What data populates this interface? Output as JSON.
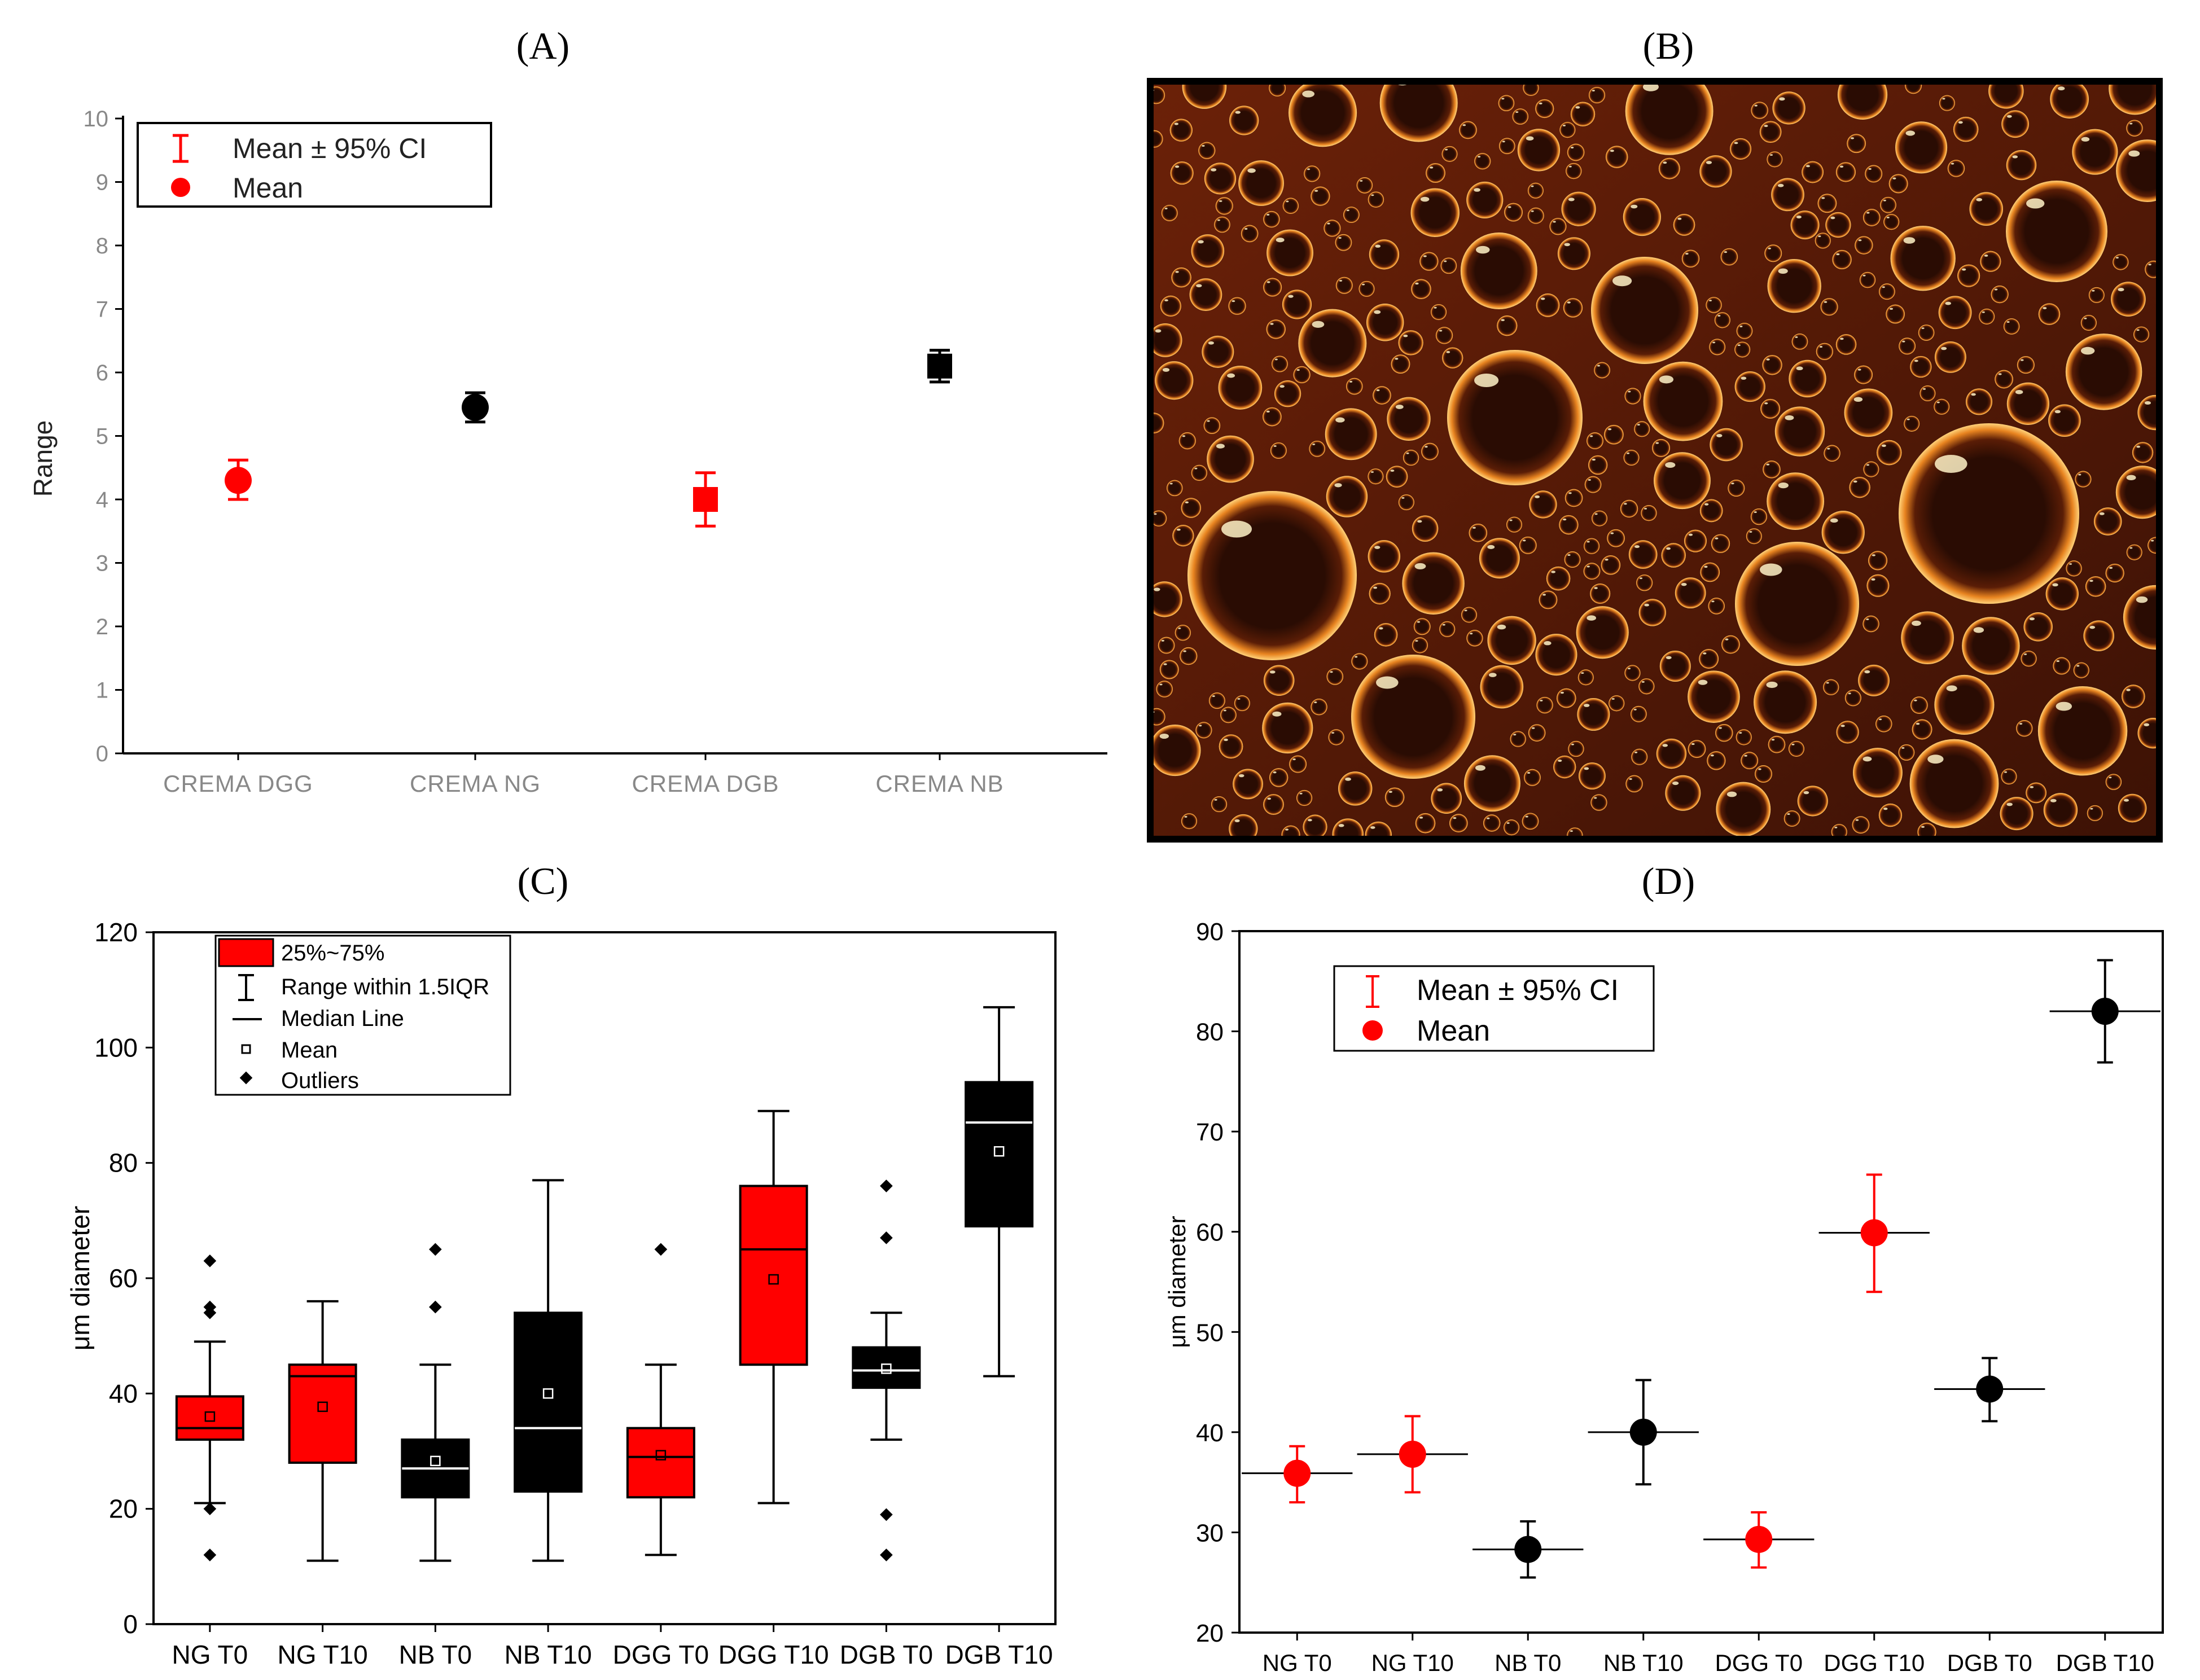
{
  "panels": {
    "A": "(A)",
    "B": "(B)",
    "C": "(C)",
    "D": "(D)"
  },
  "colors": {
    "red": "#ff0000",
    "black": "#000000"
  },
  "chart_data": [
    {
      "id": "A",
      "type": "scatter",
      "ylabel": "Range",
      "xlabel": "",
      "ylim": [
        0,
        10
      ],
      "yticks": [
        "0",
        "1",
        "2",
        "3",
        "4",
        "5",
        "6",
        "7",
        "8",
        "9",
        "10"
      ],
      "categories": [
        "CREMA DGG",
        "CREMA NG",
        "CREMA DGB",
        "CREMA NB"
      ],
      "legend": {
        "placement": "top-left",
        "entries": [
          "Mean ± 95% CI",
          "Mean"
        ]
      },
      "points": [
        {
          "category": "CREMA DGG",
          "mean": 4.3,
          "ci_low": 4.0,
          "ci_high": 4.62,
          "color": "#ff0000",
          "marker": "circle"
        },
        {
          "category": "CREMA NG",
          "mean": 5.45,
          "ci_low": 5.22,
          "ci_high": 5.68,
          "color": "#000000",
          "marker": "circle"
        },
        {
          "category": "CREMA DGB",
          "mean": 4.0,
          "ci_low": 3.58,
          "ci_high": 4.42,
          "color": "#ff0000",
          "marker": "square"
        },
        {
          "category": "CREMA NB",
          "mean": 6.1,
          "ci_low": 5.85,
          "ci_high": 6.35,
          "color": "#000000",
          "marker": "square"
        }
      ]
    },
    {
      "id": "C",
      "type": "box",
      "ylabel": "μm diameter",
      "xlabel": "",
      "ylim": [
        0,
        120
      ],
      "yticks": [
        "0",
        "20",
        "40",
        "60",
        "80",
        "100",
        "120"
      ],
      "categories": [
        "NG T0",
        "NG T10",
        "NB T0",
        "NB T10",
        "DGG T0",
        "DGG T10",
        "DGB T0",
        "DGB T10"
      ],
      "legend": {
        "placement": "top-center",
        "entries": [
          "25%~75%",
          "Range within 1.5IQR",
          "Median Line",
          "Mean",
          "Outliers"
        ]
      },
      "boxes": [
        {
          "category": "NG T0",
          "q1": 32,
          "median": 34,
          "q3": 39.5,
          "low": 21,
          "high": 49,
          "mean": 36,
          "outliers": [
            63,
            55,
            54,
            20,
            12
          ],
          "color": "#ff0000"
        },
        {
          "category": "NG T10",
          "q1": 28,
          "median": 43,
          "q3": 45,
          "low": 11,
          "high": 56,
          "mean": 37.7,
          "outliers": [],
          "color": "#ff0000"
        },
        {
          "category": "NB T0",
          "q1": 22,
          "median": 27,
          "q3": 32,
          "low": 11,
          "high": 45,
          "mean": 28.3,
          "outliers": [
            65,
            55
          ],
          "color": "#000000"
        },
        {
          "category": "NB T10",
          "q1": 23,
          "median": 34,
          "q3": 54,
          "low": 11,
          "high": 77,
          "mean": 40,
          "outliers": [],
          "color": "#000000"
        },
        {
          "category": "DGG T0",
          "q1": 22,
          "median": 29,
          "q3": 34,
          "low": 12,
          "high": 45,
          "mean": 29.3,
          "outliers": [
            65
          ],
          "color": "#ff0000"
        },
        {
          "category": "DGG T10",
          "q1": 45,
          "median": 65,
          "q3": 76,
          "low": 21,
          "high": 89,
          "mean": 59.8,
          "outliers": [],
          "color": "#ff0000"
        },
        {
          "category": "DGB T0",
          "q1": 41,
          "median": 44,
          "q3": 48,
          "low": 32,
          "high": 54,
          "mean": 44.3,
          "outliers": [
            76,
            67,
            19,
            12
          ],
          "color": "#000000"
        },
        {
          "category": "DGB T10",
          "q1": 69,
          "median": 87,
          "q3": 94,
          "low": 43,
          "high": 107,
          "mean": 82,
          "outliers": [],
          "color": "#000000"
        }
      ]
    },
    {
      "id": "D",
      "type": "scatter",
      "ylabel": "μm diameter",
      "xlabel": "",
      "ylim": [
        20,
        90
      ],
      "yticks": [
        "20",
        "30",
        "40",
        "50",
        "60",
        "70",
        "80",
        "90"
      ],
      "categories": [
        "NG T0",
        "NG T10",
        "NB T0",
        "NB T10",
        "DGG T0",
        "DGG T10",
        "DGB T0",
        "DGB T10"
      ],
      "legend": {
        "placement": "top-left",
        "entries": [
          "Mean ± 95% CI",
          "Mean"
        ]
      },
      "points": [
        {
          "category": "NG T0",
          "mean": 35.9,
          "ci_low": 33.0,
          "ci_high": 38.6,
          "color": "#ff0000"
        },
        {
          "category": "NG T10",
          "mean": 37.8,
          "ci_low": 34.0,
          "ci_high": 41.6,
          "color": "#ff0000"
        },
        {
          "category": "NB T0",
          "mean": 28.3,
          "ci_low": 25.5,
          "ci_high": 31.1,
          "color": "#000000"
        },
        {
          "category": "NB T10",
          "mean": 40.0,
          "ci_low": 34.8,
          "ci_high": 45.2,
          "color": "#000000"
        },
        {
          "category": "DGG T0",
          "mean": 29.3,
          "ci_low": 26.5,
          "ci_high": 32.0,
          "color": "#ff0000"
        },
        {
          "category": "DGG T10",
          "mean": 59.9,
          "ci_low": 54.0,
          "ci_high": 65.7,
          "color": "#ff0000"
        },
        {
          "category": "DGB T0",
          "mean": 44.3,
          "ci_low": 41.1,
          "ci_high": 47.4,
          "color": "#000000"
        },
        {
          "category": "DGB T10",
          "mean": 82.0,
          "ci_low": 76.9,
          "ci_high": 87.1,
          "color": "#000000"
        }
      ]
    }
  ]
}
